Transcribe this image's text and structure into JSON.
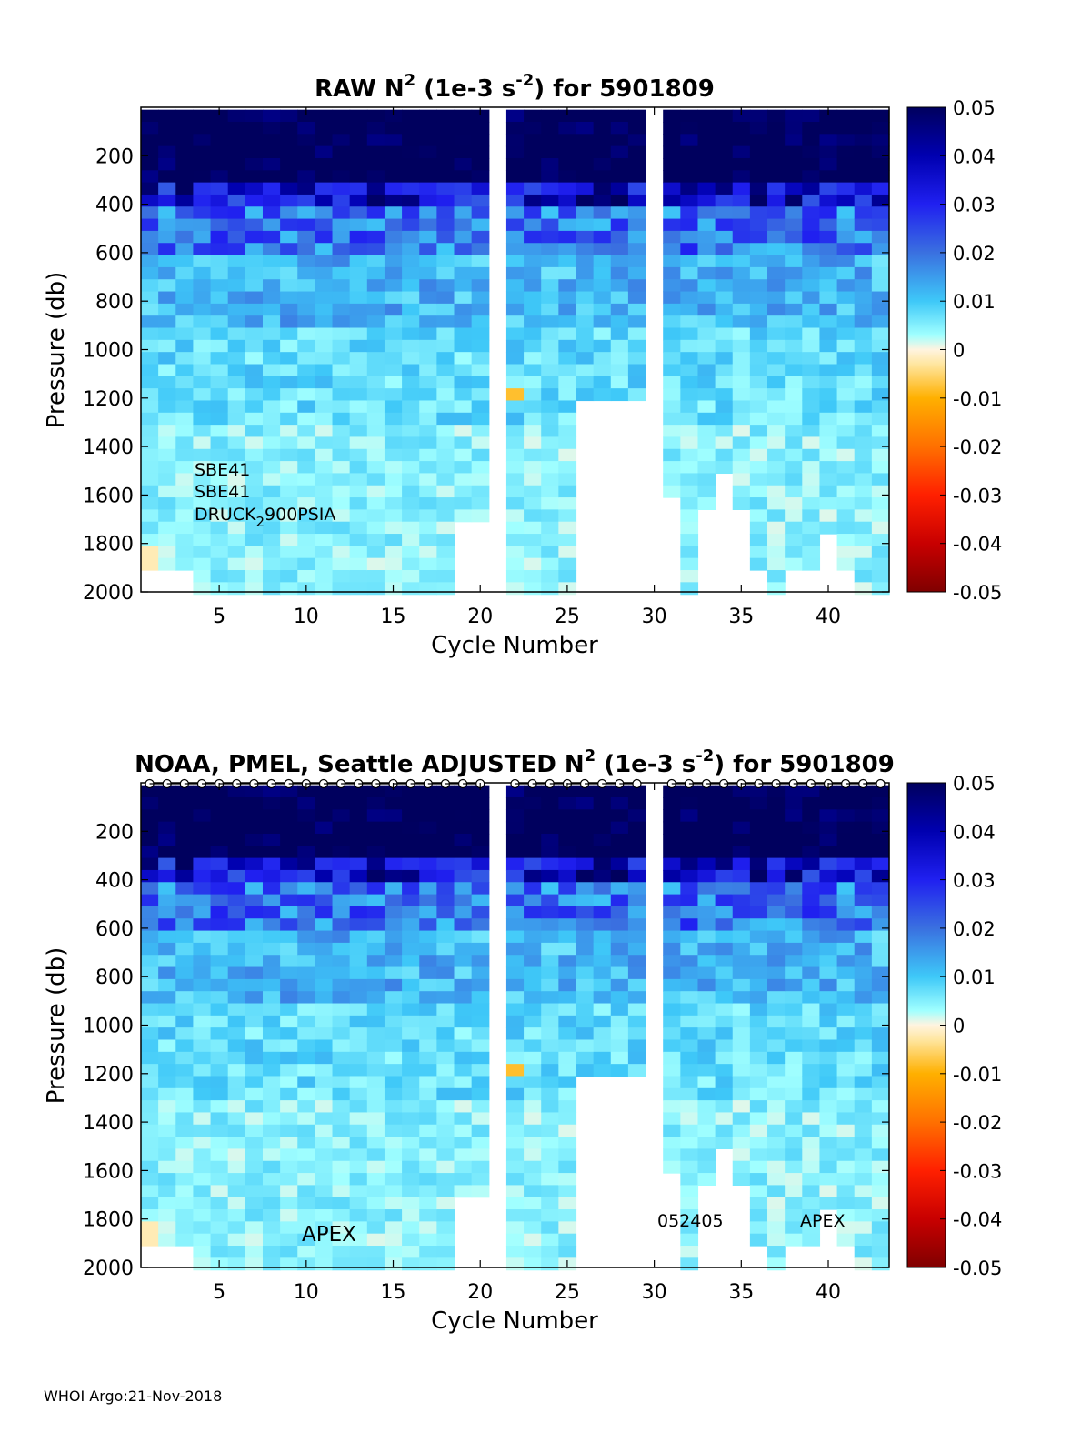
{
  "chart_data": [
    {
      "type": "heatmap",
      "panel": "raw",
      "title": {
        "prefix": "RAW N",
        "sup1": "2",
        "mid": " (1e-3 s",
        "sup2": "-2",
        "suffix": ") for 5901809"
      },
      "xlabel": "Cycle Number",
      "ylabel": "Pressure (db)",
      "x_range": [
        1,
        43
      ],
      "y_range": [
        0,
        2000
      ],
      "y_reversed": true,
      "x_ticks": [
        5,
        10,
        15,
        20,
        25,
        30,
        35,
        40
      ],
      "y_ticks": [
        200,
        400,
        600,
        800,
        1000,
        1200,
        1400,
        1600,
        1800,
        2000
      ],
      "colorbar": {
        "min": -0.05,
        "max": 0.05,
        "ticks": [
          "0.05",
          "0.04",
          "0.03",
          "0.02",
          "0.01",
          "0",
          "-0.01",
          "-0.02",
          "-0.03",
          "-0.04",
          "-0.05"
        ]
      },
      "missing_cycles": [
        21,
        30
      ],
      "annotations": [
        "SBE41",
        "SBE41"
      ],
      "sensor_label": {
        "base": "DRUCK",
        "sub": "2",
        "rest": "900PSIA"
      },
      "profile_markers": false
    },
    {
      "type": "heatmap",
      "panel": "adjusted",
      "title": {
        "prefix": "NOAA, PMEL, Seattle  ADJUSTED N",
        "sup1": "2",
        "mid": " (1e-3 s",
        "sup2": "-2",
        "suffix": ") for 5901809"
      },
      "xlabel": "Cycle Number",
      "ylabel": "Pressure (db)",
      "x_range": [
        1,
        43
      ],
      "y_range": [
        0,
        2000
      ],
      "y_reversed": true,
      "x_ticks": [
        5,
        10,
        15,
        20,
        25,
        30,
        35,
        40
      ],
      "y_ticks": [
        200,
        400,
        600,
        800,
        1000,
        1200,
        1400,
        1600,
        1800,
        2000
      ],
      "colorbar": {
        "min": -0.05,
        "max": 0.05,
        "ticks": [
          "0.05",
          "0.04",
          "0.03",
          "0.02",
          "0.01",
          "0",
          "-0.01",
          "-0.02",
          "-0.03",
          "-0.04",
          "-0.05"
        ]
      },
      "missing_cycles": [
        21,
        30
      ],
      "annotations": [
        "APEX",
        "052405",
        "APEX"
      ],
      "profile_markers": true
    }
  ],
  "footer": "WHOI Argo:21-Nov-2018",
  "colors": {
    "background": "#ffffff",
    "dark_navy": "#00005e",
    "cyan": "#80ffff",
    "orange": "#ffb000",
    "axis": "#000000"
  }
}
